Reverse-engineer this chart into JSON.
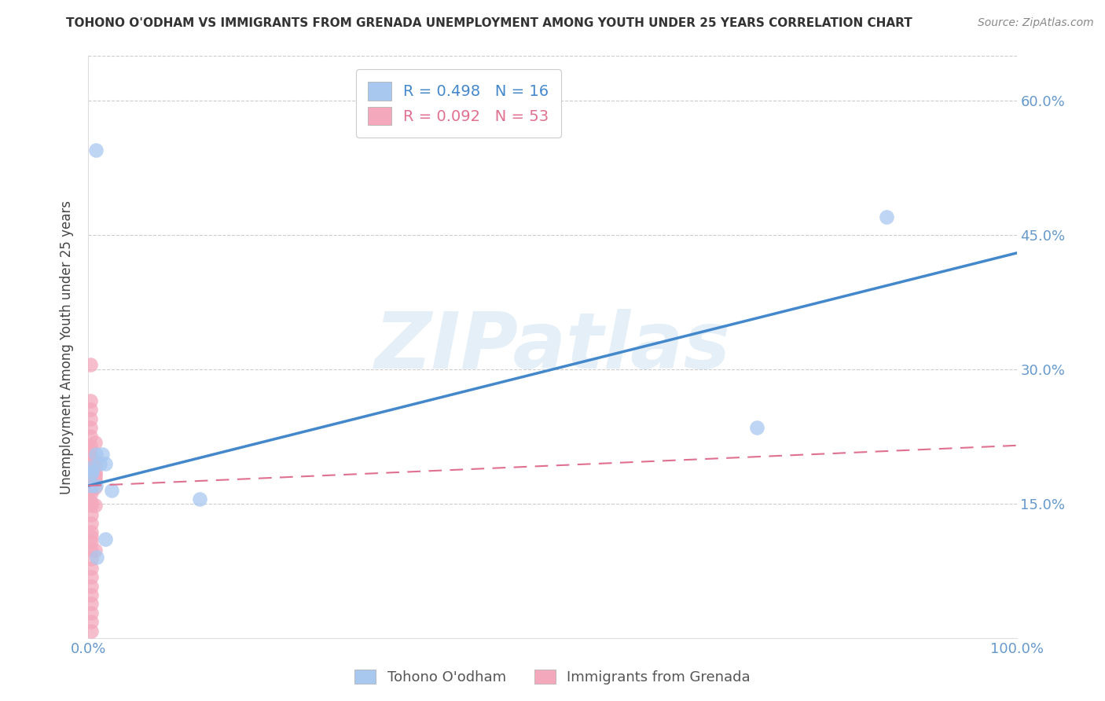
{
  "title": "TOHONO O'ODHAM VS IMMIGRANTS FROM GRENADA UNEMPLOYMENT AMONG YOUTH UNDER 25 YEARS CORRELATION CHART",
  "source": "Source: ZipAtlas.com",
  "ylabel": "Unemployment Among Youth under 25 years",
  "watermark": "ZIPatlas",
  "xlim": [
    0,
    1.0
  ],
  "ylim": [
    0,
    0.65
  ],
  "xticks": [
    0.0,
    0.25,
    0.5,
    0.75,
    1.0
  ],
  "xticklabels": [
    "0.0%",
    "",
    "",
    "",
    "100.0%"
  ],
  "yticks": [
    0.0,
    0.15,
    0.3,
    0.45,
    0.6
  ],
  "yticklabels_right": [
    "",
    "15.0%",
    "30.0%",
    "45.0%",
    "60.0%"
  ],
  "blue_r": 0.498,
  "blue_n": 16,
  "pink_r": 0.092,
  "pink_n": 53,
  "blue_color": "#a8c8f0",
  "pink_color": "#f4a8bc",
  "blue_line_color": "#4488cc",
  "pink_line_color": "#e07090",
  "grid_color": "#cccccc",
  "title_color": "#333333",
  "axis_color": "#6699cc",
  "blue_scatter_x": [
    0.008,
    0.008,
    0.012,
    0.015,
    0.018,
    0.025,
    0.12,
    0.72,
    0.86,
    0.003,
    0.003,
    0.008,
    0.018,
    0.009,
    0.003,
    0.004
  ],
  "blue_scatter_y": [
    0.545,
    0.205,
    0.195,
    0.205,
    0.195,
    0.165,
    0.155,
    0.235,
    0.47,
    0.19,
    0.17,
    0.17,
    0.11,
    0.09,
    0.185,
    0.185
  ],
  "pink_scatter_x": [
    0.002,
    0.002,
    0.002,
    0.002,
    0.002,
    0.002,
    0.002,
    0.002,
    0.002,
    0.002,
    0.002,
    0.002,
    0.002,
    0.002,
    0.002,
    0.002,
    0.002,
    0.002,
    0.002,
    0.002,
    0.002,
    0.007,
    0.007,
    0.007,
    0.007,
    0.007,
    0.007,
    0.007,
    0.007,
    0.007,
    0.007,
    0.003,
    0.003,
    0.003,
    0.003,
    0.003,
    0.003,
    0.003,
    0.003,
    0.003,
    0.003,
    0.003,
    0.003,
    0.003,
    0.003,
    0.003,
    0.003,
    0.003,
    0.003,
    0.003,
    0.003,
    0.003,
    0.003
  ],
  "pink_scatter_y": [
    0.305,
    0.265,
    0.255,
    0.245,
    0.235,
    0.225,
    0.215,
    0.21,
    0.205,
    0.198,
    0.193,
    0.188,
    0.185,
    0.183,
    0.18,
    0.178,
    0.175,
    0.172,
    0.17,
    0.168,
    0.165,
    0.218,
    0.198,
    0.193,
    0.185,
    0.183,
    0.18,
    0.175,
    0.168,
    0.148,
    0.098,
    0.162,
    0.152,
    0.148,
    0.138,
    0.128,
    0.118,
    0.113,
    0.108,
    0.098,
    0.088,
    0.078,
    0.068,
    0.058,
    0.048,
    0.038,
    0.028,
    0.018,
    0.008,
    0.183,
    0.183,
    0.183,
    0.183
  ],
  "blue_line_x": [
    0.0,
    1.0
  ],
  "blue_line_y": [
    0.17,
    0.43
  ],
  "pink_line_x": [
    0.0,
    1.0
  ],
  "pink_line_y": [
    0.17,
    0.215
  ]
}
